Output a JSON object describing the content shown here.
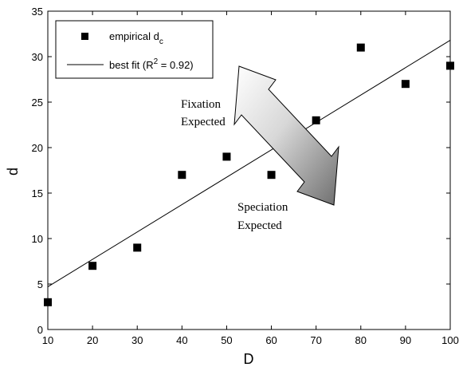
{
  "chart_data": {
    "type": "scatter",
    "xlabel": "D",
    "ylabel": "d",
    "xlim": [
      10,
      100
    ],
    "ylim": [
      0,
      35
    ],
    "xticks": [
      10,
      20,
      30,
      40,
      50,
      60,
      70,
      80,
      90,
      100
    ],
    "yticks": [
      0,
      5,
      10,
      15,
      20,
      25,
      30,
      35
    ],
    "legend_position": "top-left",
    "grid": false,
    "series": [
      {
        "name": "empirical d",
        "name_subscript": "c",
        "marker": "square",
        "color": "#000000",
        "x": [
          10,
          20,
          30,
          40,
          50,
          60,
          70,
          80,
          90,
          100
        ],
        "y": [
          3,
          7,
          9,
          17,
          19,
          17,
          23,
          31,
          27,
          29
        ]
      },
      {
        "name": "best fit (R",
        "name_superscript": "2",
        "name_suffix": " = 0.92)",
        "type": "line",
        "color": "#000000",
        "x": [
          10,
          100
        ],
        "y": [
          4.7,
          31.8
        ]
      }
    ],
    "annotations": [
      {
        "line1": "Fixation",
        "line2": "Expected"
      },
      {
        "line1": "Speciation",
        "line2": "Expected"
      }
    ]
  }
}
